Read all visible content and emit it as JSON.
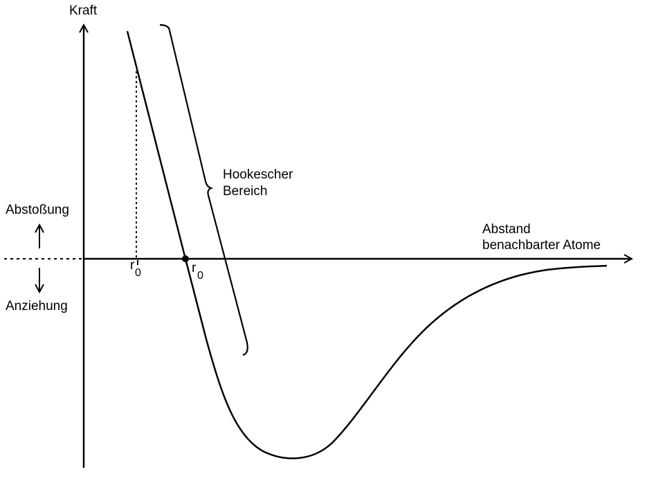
{
  "labels": {
    "y_axis": "Kraft",
    "x_axis_line1": "Abstand",
    "x_axis_line2": "benachbarter Atome",
    "repulsion": "Abstoßung",
    "attraction": "Anziehung",
    "hooke_line1": "Hookescher",
    "hooke_line2": "Bereich",
    "r_symbol": "r",
    "r_subscript": "0"
  },
  "colors": {
    "stroke": "#000000",
    "background": "#ffffff"
  }
}
